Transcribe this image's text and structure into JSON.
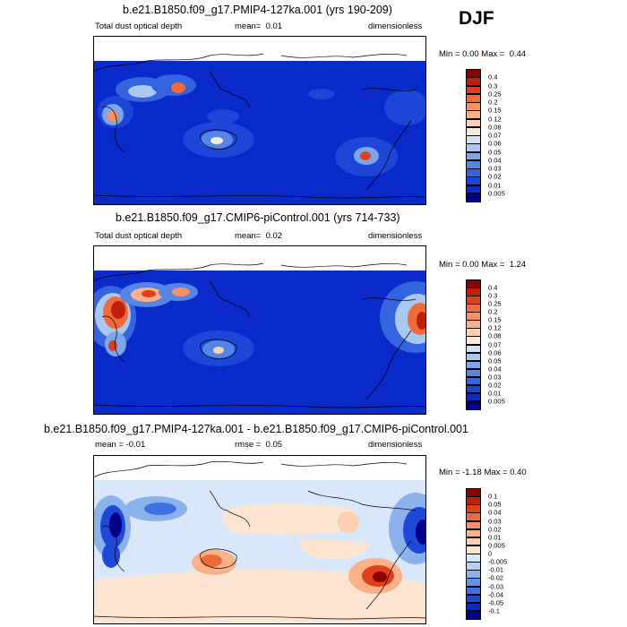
{
  "season_label": "DJF",
  "panels": [
    {
      "title": "b.e21.B1850.f09_g17.PMIP4-127ka.001 (yrs 190-209)",
      "field": "Total dust optical depth",
      "mean_label": "mean=",
      "mean_value": "0.01",
      "units": "dimensionless",
      "min_label": "Min =",
      "min_value": "0.00",
      "max_label": "Max =",
      "max_value": "0.44",
      "colorbar": {
        "levels": [
          "0.4",
          "0.3",
          "0.25",
          "0.2",
          "0.15",
          "0.12",
          "0.08",
          "0.07",
          "0.06",
          "0.05",
          "0.04",
          "0.03",
          "0.02",
          "0.01",
          "0.005"
        ],
        "colors": [
          "#8b0000",
          "#c0200a",
          "#e04018",
          "#f06a3a",
          "#f89060",
          "#fbb08a",
          "#fcd0b0",
          "#f5eadb",
          "#cfe0f7",
          "#a8c8f2",
          "#7ca5ec",
          "#5585e6",
          "#3465df",
          "#1d45d6",
          "#0a2ac9",
          "#00008a"
        ]
      }
    },
    {
      "title": "b.e21.B1850.f09_g17.CMIP6-piControl.001 (yrs 714-733)",
      "field": "Total dust optical depth",
      "mean_label": "mean=",
      "mean_value": "0.02",
      "units": "dimensionless",
      "min_label": "Min =",
      "min_value": "0.00",
      "max_label": "Max =",
      "max_value": "1.24",
      "colorbar": {
        "levels": [
          "0.4",
          "0.3",
          "0.25",
          "0.2",
          "0.15",
          "0.12",
          "0.08",
          "0.07",
          "0.06",
          "0.05",
          "0.04",
          "0.03",
          "0.02",
          "0.01",
          "0.005"
        ],
        "colors": [
          "#8b0000",
          "#c0200a",
          "#e04018",
          "#f06a3a",
          "#f89060",
          "#fbb08a",
          "#fcd0b0",
          "#f5eadb",
          "#cfe0f7",
          "#a8c8f2",
          "#7ca5ec",
          "#5585e6",
          "#3465df",
          "#1d45d6",
          "#0a2ac9",
          "#00008a"
        ]
      }
    },
    {
      "title": "b.e21.B1850.f09_g17.PMIP4-127ka.001 - b.e21.B1850.f09_g17.CMIP6-piControl.001",
      "mean_label": "mean =",
      "mean_value": "-0.01",
      "rmse_label": "rmse =",
      "rmse_value": "0.05",
      "units": "dimensionless",
      "min_label": "Min =",
      "min_value": "-1.18",
      "max_label": "Max =",
      "max_value": "0.40",
      "colorbar": {
        "levels": [
          "0.1",
          "0.05",
          "0.04",
          "0.03",
          "0.02",
          "0.01",
          "0.005",
          "0",
          "-0.005",
          "-0.01",
          "-0.02",
          "-0.03",
          "-0.04",
          "-0.05",
          "-0.1"
        ],
        "colors": [
          "#8b0000",
          "#c0200a",
          "#e04018",
          "#f06a3a",
          "#f89060",
          "#fbb08a",
          "#fcd0b0",
          "#fde4d0",
          "#d8e8fa",
          "#b4d0f5",
          "#8cb2ee",
          "#6592e8",
          "#4070e1",
          "#2048d6",
          "#0a28c4",
          "#00008a"
        ]
      }
    }
  ]
}
